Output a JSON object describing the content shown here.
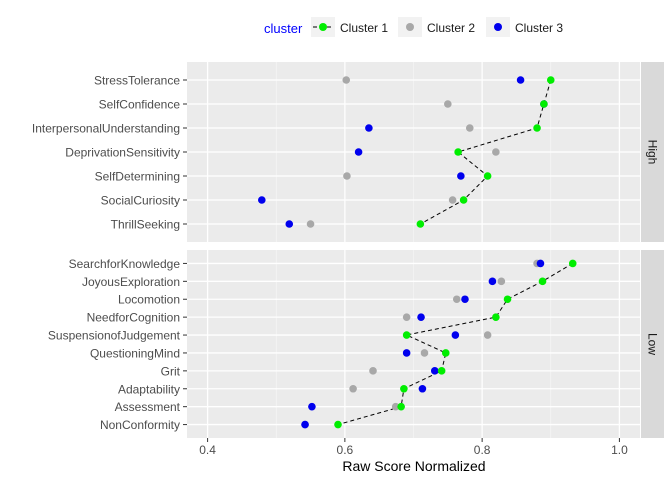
{
  "chart_data": {
    "type": "dot-line-faceted",
    "xlabel": "Raw Score Normalized",
    "xlim": [
      0.37,
      1.03
    ],
    "xticks": [
      0.4,
      0.6,
      0.8,
      1.0
    ],
    "xtick_labels": [
      "0.4",
      "0.6",
      "0.8",
      "1.0"
    ],
    "grid": true,
    "legend": {
      "title": "cluster",
      "placement": "top",
      "entries": [
        "Cluster 1",
        "Cluster 2",
        "Cluster 3"
      ]
    },
    "series_colors": {
      "Cluster 1": "#00ee00",
      "Cluster 2": "#a8a8a8",
      "Cluster 3": "#0000ee"
    },
    "line_series": "Cluster 1",
    "panels": [
      {
        "strip_label": "High",
        "categories": [
          "StressTolerance",
          "SelfConfidence",
          "InterpersonalUnderstanding",
          "DeprivationSensitivity",
          "SelfDetermining",
          "SocialCuriosity",
          "ThrillSeeking"
        ],
        "series": [
          {
            "name": "Cluster 1",
            "values": [
              0.9,
              0.89,
              0.88,
              0.765,
              0.808,
              0.773,
              0.71
            ]
          },
          {
            "name": "Cluster 2",
            "values": [
              0.602,
              0.75,
              0.782,
              0.82,
              0.603,
              0.757,
              0.55
            ]
          },
          {
            "name": "Cluster 3",
            "values": [
              0.856,
              0.89,
              0.635,
              0.62,
              0.769,
              0.479,
              0.519
            ]
          }
        ]
      },
      {
        "strip_label": "Low",
        "categories": [
          "SearchforKnowledge",
          "JoyousExploration",
          "Locomotion",
          "NeedforCognition",
          "SuspensionofJudgement",
          "QuestioningMind",
          "Grit",
          "Adaptability",
          "Assessment",
          "NonConformity"
        ],
        "series": [
          {
            "name": "Cluster 1",
            "values": [
              0.932,
              0.888,
              0.837,
              0.82,
              0.69,
              0.747,
              0.741,
              0.686,
              0.682,
              0.59
            ]
          },
          {
            "name": "Cluster 2",
            "values": [
              0.88,
              0.828,
              0.763,
              0.69,
              0.808,
              0.716,
              0.641,
              0.612,
              0.674,
              0.542
            ]
          },
          {
            "name": "Cluster 3",
            "values": [
              0.885,
              0.815,
              0.775,
              0.711,
              0.761,
              0.69,
              0.731,
              0.713,
              0.552,
              0.542
            ]
          }
        ]
      }
    ]
  }
}
